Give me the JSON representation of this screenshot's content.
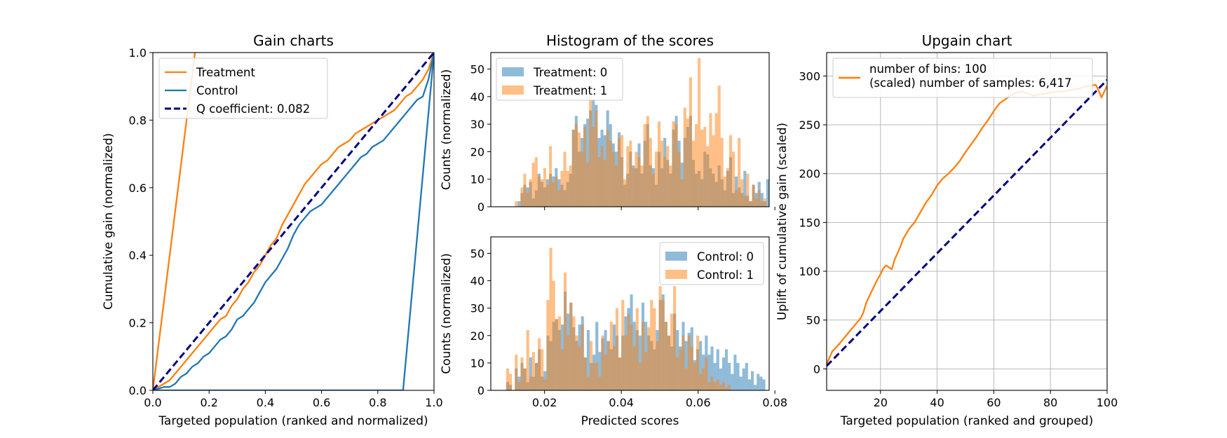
{
  "chart_data": [
    {
      "type": "line",
      "title": "Gain charts",
      "xlabel": "Targeted population (ranked and normalized)",
      "ylabel": "Cumulative gain (normalized)",
      "xlim": [
        0,
        1
      ],
      "ylim": [
        0,
        1
      ],
      "xticks": [
        "0.0",
        "0.2",
        "0.4",
        "0.6",
        "0.8",
        "1.0"
      ],
      "yticks": [
        "0.0",
        "0.2",
        "0.4",
        "0.6",
        "0.8",
        "1.0"
      ],
      "grid": false,
      "legend_position": "top-left",
      "legend": [
        "Treatment",
        "Control",
        "Q coefficient:  0.082"
      ],
      "series": [
        {
          "name": "Treatment",
          "color": "#ff7f0e",
          "style": "solid",
          "x": [
            0,
            0.15
          ],
          "y": [
            0,
            1.0
          ]
        },
        {
          "name": "Treatment",
          "color": "#ff7f0e",
          "style": "solid",
          "x": [
            0,
            0.02,
            0.04,
            0.06,
            0.08,
            0.1,
            0.12,
            0.14,
            0.16,
            0.18,
            0.2,
            0.22,
            0.24,
            0.26,
            0.28,
            0.3,
            0.32,
            0.34,
            0.36,
            0.38,
            0.4,
            0.42,
            0.44,
            0.46,
            0.48,
            0.5,
            0.52,
            0.54,
            0.56,
            0.58,
            0.6,
            0.62,
            0.64,
            0.66,
            0.68,
            0.7,
            0.72,
            0.74,
            0.76,
            0.78,
            0.8,
            0.82,
            0.84,
            0.86,
            0.88,
            0.9,
            0.92,
            0.94,
            0.96,
            0.98,
            1.0
          ],
          "y": [
            0,
            0.01,
            0.02,
            0.03,
            0.05,
            0.07,
            0.09,
            0.11,
            0.13,
            0.15,
            0.17,
            0.19,
            0.21,
            0.22,
            0.25,
            0.27,
            0.3,
            0.32,
            0.35,
            0.37,
            0.4,
            0.43,
            0.45,
            0.49,
            0.52,
            0.55,
            0.58,
            0.61,
            0.63,
            0.65,
            0.67,
            0.68,
            0.7,
            0.72,
            0.73,
            0.74,
            0.76,
            0.77,
            0.78,
            0.79,
            0.8,
            0.81,
            0.82,
            0.83,
            0.85,
            0.87,
            0.88,
            0.9,
            0.92,
            0.95,
            1.0
          ]
        },
        {
          "name": "Control",
          "color": "#1f77b4",
          "style": "solid",
          "x": [
            0,
            0.02,
            0.04,
            0.06,
            0.08,
            0.1,
            0.12,
            0.14,
            0.16,
            0.18,
            0.2,
            0.22,
            0.24,
            0.26,
            0.28,
            0.3,
            0.32,
            0.34,
            0.36,
            0.38,
            0.4,
            0.42,
            0.44,
            0.46,
            0.48,
            0.5,
            0.52,
            0.54,
            0.56,
            0.58,
            0.6,
            0.62,
            0.64,
            0.66,
            0.68,
            0.7,
            0.72,
            0.74,
            0.76,
            0.78,
            0.8,
            0.82,
            0.84,
            0.86,
            0.88,
            0.9,
            0.92,
            0.94,
            0.96,
            0.98,
            1.0
          ],
          "y": [
            0,
            0.005,
            0.01,
            0.01,
            0.02,
            0.04,
            0.05,
            0.07,
            0.08,
            0.1,
            0.11,
            0.13,
            0.15,
            0.16,
            0.18,
            0.21,
            0.22,
            0.24,
            0.26,
            0.29,
            0.32,
            0.34,
            0.36,
            0.39,
            0.42,
            0.46,
            0.49,
            0.51,
            0.53,
            0.54,
            0.55,
            0.57,
            0.59,
            0.61,
            0.63,
            0.65,
            0.67,
            0.69,
            0.7,
            0.72,
            0.73,
            0.74,
            0.76,
            0.78,
            0.8,
            0.82,
            0.84,
            0.86,
            0.87,
            0.92,
            1.0
          ]
        },
        {
          "name": "Control",
          "color": "#1f77b4",
          "style": "solid",
          "x": [
            0,
            0.89,
            1.0
          ],
          "y": [
            0,
            0,
            1.0
          ]
        },
        {
          "name": "Q coefficient:  0.082",
          "color": "#000080",
          "style": "dashed",
          "x": [
            0,
            1
          ],
          "y": [
            0,
            1
          ]
        }
      ]
    },
    {
      "type": "bar",
      "title": "Histogram of the scores",
      "xlabel": "",
      "ylabel": "Counts (normalized)",
      "xlim": [
        0.006,
        0.0785
      ],
      "ylim": [
        0,
        56
      ],
      "yticks": [
        "0",
        "10",
        "20",
        "30",
        "40",
        "50"
      ],
      "legend_position": "top-left",
      "legend": [
        "Treatment: 0",
        "Treatment: 1"
      ],
      "series": [
        {
          "name": "Treatment: 0",
          "color": "#1f77b4",
          "opacity": 0.5,
          "edges": [
            0.0115,
            0.0785
          ],
          "values": [
            0,
            0,
            2,
            5,
            8,
            7,
            9,
            3,
            6,
            12,
            9,
            7,
            10,
            12,
            11,
            14,
            10,
            8,
            6,
            9,
            12,
            28,
            33,
            20,
            25,
            30,
            32,
            35,
            39,
            37,
            25,
            28,
            26,
            35,
            30,
            23,
            20,
            27,
            18,
            8,
            12,
            20,
            15,
            14,
            23,
            12,
            24,
            30,
            15,
            14,
            8,
            20,
            14,
            25,
            17,
            12,
            28,
            33,
            24,
            16,
            25,
            29,
            33,
            17,
            12,
            13,
            10,
            20,
            19,
            14,
            12,
            9,
            15,
            10,
            6,
            13,
            18,
            5,
            11,
            7,
            5,
            13,
            4,
            2,
            8,
            5,
            9,
            5,
            2,
            10
          ]
        },
        {
          "name": "Treatment: 1",
          "color": "#ff7f0e",
          "opacity": 0.5,
          "edges": [
            0.0115,
            0.0785
          ],
          "values": [
            0,
            2,
            0,
            7,
            12,
            5,
            10,
            16,
            18,
            11,
            10,
            14,
            8,
            22,
            9,
            11,
            6,
            13,
            20,
            13,
            15,
            28,
            30,
            27,
            20,
            29,
            16,
            40,
            29,
            35,
            18,
            22,
            17,
            28,
            24,
            20,
            15,
            25,
            26,
            10,
            22,
            24,
            14,
            20,
            18,
            15,
            30,
            33,
            25,
            12,
            20,
            31,
            24,
            18,
            22,
            15,
            31,
            30,
            20,
            10,
            36,
            32,
            47,
            24,
            30,
            54,
            28,
            29,
            22,
            34,
            26,
            34,
            44,
            25,
            11,
            14,
            26,
            20,
            6,
            25,
            10,
            4,
            12,
            2,
            8,
            3,
            6,
            2,
            3,
            0
          ]
        }
      ]
    },
    {
      "type": "bar",
      "title": "",
      "xlabel": "Predicted scores",
      "ylabel": "Counts (normalized)",
      "xlim": [
        0.006,
        0.0785
      ],
      "ylim": [
        0,
        56
      ],
      "xticks": [
        "0.02",
        "0.04",
        "0.06",
        "0.08"
      ],
      "yticks": [
        "0",
        "10",
        "20",
        "30",
        "40",
        "50"
      ],
      "legend_position": "top-right",
      "legend": [
        "Control: 0",
        "Control: 1"
      ],
      "series": [
        {
          "name": "Control: 0",
          "color": "#1f77b4",
          "opacity": 0.5,
          "edges": [
            0.01,
            0.0775
          ],
          "values": [
            3,
            2,
            0,
            8,
            5,
            10,
            8,
            3,
            12,
            5,
            10,
            15,
            5,
            7,
            20,
            18,
            25,
            26,
            22,
            24,
            36,
            28,
            32,
            23,
            18,
            24,
            27,
            12,
            22,
            10,
            13,
            25,
            14,
            19,
            22,
            18,
            15,
            24,
            20,
            12,
            20,
            27,
            30,
            35,
            25,
            22,
            20,
            32,
            25,
            20,
            18,
            15,
            22,
            33,
            35,
            25,
            20,
            16,
            28,
            22,
            16,
            25,
            18,
            21,
            23,
            11,
            15,
            18,
            13,
            20,
            13,
            16,
            10,
            15,
            8,
            12,
            15,
            10,
            6,
            13,
            10,
            5,
            8,
            10,
            4,
            7,
            2,
            6,
            5,
            4
          ]
        },
        {
          "name": "Control: 1",
          "color": "#ff7f0e",
          "opacity": 0.5,
          "edges": [
            0.01,
            0.0775
          ],
          "values": [
            8,
            6,
            0,
            13,
            3,
            12,
            8,
            22,
            5,
            14,
            10,
            19,
            15,
            4,
            33,
            52,
            40,
            26,
            27,
            15,
            43,
            20,
            32,
            27,
            20,
            16,
            24,
            12,
            5,
            18,
            10,
            10,
            5,
            20,
            13,
            18,
            25,
            16,
            30,
            12,
            33,
            20,
            28,
            24,
            16,
            30,
            10,
            25,
            14,
            23,
            33,
            30,
            18,
            38,
            33,
            25,
            20,
            28,
            38,
            12,
            15,
            20,
            8,
            20,
            16,
            10,
            20,
            6,
            8,
            12,
            3,
            5,
            3,
            4,
            2,
            3,
            1,
            2,
            0,
            0,
            0,
            0,
            0,
            0,
            0,
            0,
            0,
            0,
            0,
            0
          ]
        }
      ]
    },
    {
      "type": "line",
      "title": "Upgain chart",
      "xlabel": "Targeted population (ranked and grouped)",
      "ylabel": "Uplift of cumulative gain (scaled)",
      "xlim": [
        1,
        100
      ],
      "ylim": [
        -22,
        324
      ],
      "xticks": [
        "20",
        "40",
        "60",
        "80",
        "100"
      ],
      "yticks": [
        "0",
        "50",
        "100",
        "150",
        "200",
        "250",
        "300"
      ],
      "grid": true,
      "legend_position": "top-left",
      "legend_text": [
        "number of bins: 100",
        "(scaled) number of samples: 6,417"
      ],
      "series": [
        {
          "name": "number of bins: 100",
          "color": "#ff7f0e",
          "style": "solid",
          "x": [
            1,
            3,
            5,
            7,
            9,
            11,
            13,
            14,
            15,
            17,
            19,
            20,
            21,
            22,
            24,
            25,
            27,
            28,
            30,
            32,
            34,
            36,
            38,
            40,
            42,
            44,
            46,
            48,
            50,
            52,
            54,
            56,
            58,
            60,
            62,
            64,
            66,
            68,
            70,
            72,
            74,
            76,
            78,
            80,
            82,
            84,
            86,
            88,
            90,
            92,
            94,
            96,
            97,
            98,
            100
          ],
          "y": [
            5,
            18,
            24,
            31,
            38,
            45,
            52,
            58,
            68,
            80,
            92,
            97,
            103,
            106,
            102,
            112,
            125,
            133,
            143,
            150,
            160,
            170,
            178,
            188,
            195,
            200,
            206,
            213,
            222,
            230,
            238,
            247,
            255,
            264,
            272,
            276,
            280,
            283,
            284,
            282,
            280,
            281,
            282,
            283,
            284,
            284,
            285,
            286,
            287,
            289,
            290,
            291,
            285,
            278,
            290
          ]
        },
        {
          "name": "diagonal",
          "color": "#000080",
          "style": "dashed",
          "x": [
            1,
            100
          ],
          "y": [
            3,
            296
          ]
        }
      ]
    }
  ]
}
